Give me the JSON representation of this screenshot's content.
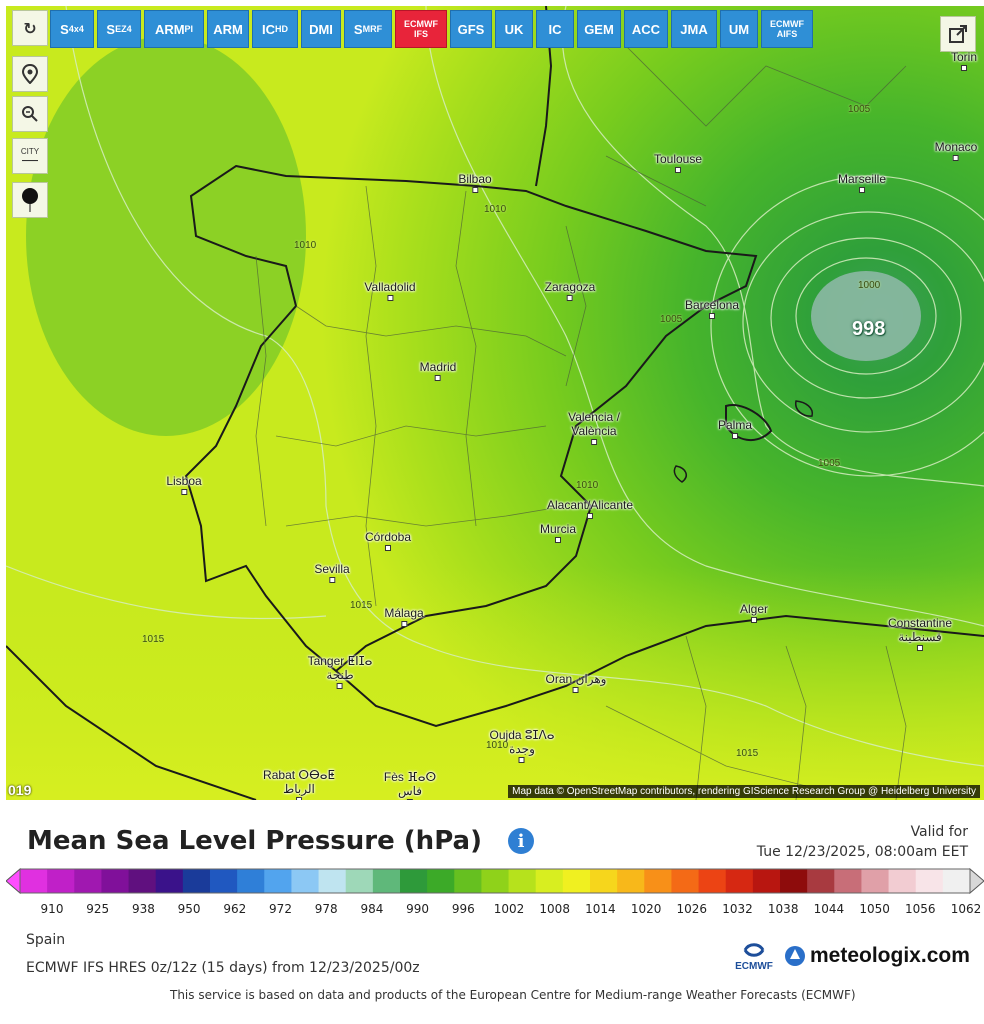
{
  "toolbar": {
    "refresh_icon": "refresh-icon",
    "models": [
      {
        "main": "S",
        "sub": "4x4"
      },
      {
        "main": "S",
        "sub": "EZ4"
      },
      {
        "main": "ARM",
        "sub": "PI"
      },
      {
        "main": "ARM",
        "sub": ""
      },
      {
        "main": "IC",
        "sub": "HD"
      },
      {
        "main": "DMI",
        "sub": ""
      },
      {
        "main": "S",
        "sub": "MRF"
      },
      {
        "main": "ECMWF IFS",
        "sub": "",
        "active": true
      },
      {
        "main": "GFS",
        "sub": ""
      },
      {
        "main": "UK",
        "sub": ""
      },
      {
        "main": "IC",
        "sub": ""
      },
      {
        "main": "GEM",
        "sub": ""
      },
      {
        "main": "ACC",
        "sub": ""
      },
      {
        "main": "JMA",
        "sub": ""
      },
      {
        "main": "UM",
        "sub": ""
      },
      {
        "main": "ECMWF AIFS",
        "sub": ""
      }
    ],
    "city_toggle_label": "CITY"
  },
  "map": {
    "cities": [
      {
        "name": "Bilbao"
      },
      {
        "name": "Toulouse"
      },
      {
        "name": "Marseille"
      },
      {
        "name": "Monaco"
      },
      {
        "name": "Torin"
      },
      {
        "name": "Valladolid"
      },
      {
        "name": "Zaragoza"
      },
      {
        "name": "Barcelona"
      },
      {
        "name": "Madrid"
      },
      {
        "name": "Valencia /\nValència"
      },
      {
        "name": "Palma"
      },
      {
        "name": "Lisboa"
      },
      {
        "name": "Alacant/Alicante"
      },
      {
        "name": "Murcia"
      },
      {
        "name": "Córdoba"
      },
      {
        "name": "Sevilla"
      },
      {
        "name": "Málaga"
      },
      {
        "name": "Tanger ⵟⵏⵊⴰ\nطنجة"
      },
      {
        "name": "Alger"
      },
      {
        "name": "Constantine\nقسنطينة"
      },
      {
        "name": "Oran وهران"
      },
      {
        "name": "Oujda ⵓⵊⴷⴰ\nوجدة"
      },
      {
        "name": "Rabat ⵔⴱⴰⵟ\nالرباط"
      },
      {
        "name": "Fès ⴼⴰⵙ\nفاس"
      }
    ],
    "isobars": [
      "1005",
      "1010",
      "1010",
      "1010",
      "1005",
      "1000",
      "1005",
      "1010",
      "1015",
      "1015",
      "1010",
      "1015",
      "1015",
      "1015"
    ],
    "low_label": "998",
    "corner_number": "019",
    "attribution": "Map data © OpenStreetMap contributors, rendering GIScience Research Group @ Heidelberg University"
  },
  "legend": {
    "title": "Mean Sea Level Pressure (hPa)",
    "valid_label": "Valid for",
    "valid_time": "Tue 12/23/2025, 08:00am EET",
    "ticks": [
      "910",
      "925",
      "938",
      "950",
      "962",
      "972",
      "978",
      "984",
      "990",
      "996",
      "1002",
      "1008",
      "1014",
      "1020",
      "1026",
      "1032",
      "1038",
      "1044",
      "1050",
      "1056",
      "1062"
    ],
    "colors": [
      "#ff4dff",
      "#e030e0",
      "#c020c8",
      "#a018b0",
      "#80109a",
      "#60107f",
      "#3a128a",
      "#1a3b9a",
      "#2058c0",
      "#2f7fd8",
      "#52a4ee",
      "#8cc8f4",
      "#bfe4f0",
      "#9ed8b8",
      "#5fb87a",
      "#2e9a3a",
      "#3caa28",
      "#66c020",
      "#8fd21a",
      "#b6e21c",
      "#d8ee20",
      "#f0f020",
      "#f6d61c",
      "#f8b81a",
      "#f89018",
      "#f46a16",
      "#ec4414",
      "#d62812",
      "#b81610",
      "#8e0c0c",
      "#a83a40",
      "#c86e78",
      "#e0a0a8",
      "#f2ccd2",
      "#f8e4e8",
      "#f0f0f0",
      "#d8d8d8"
    ]
  },
  "footer": {
    "region": "Spain",
    "run_info": "ECMWF IFS HRES 0z/12z (15 days) from 12/23/2025/00z",
    "ecmwf_logo_text": "ECMWF",
    "site_logo_text": "meteologix.com",
    "disclaimer": "This service is based on data and products of the European Centre for Medium-range Weather Forecasts (ECMWF)"
  }
}
